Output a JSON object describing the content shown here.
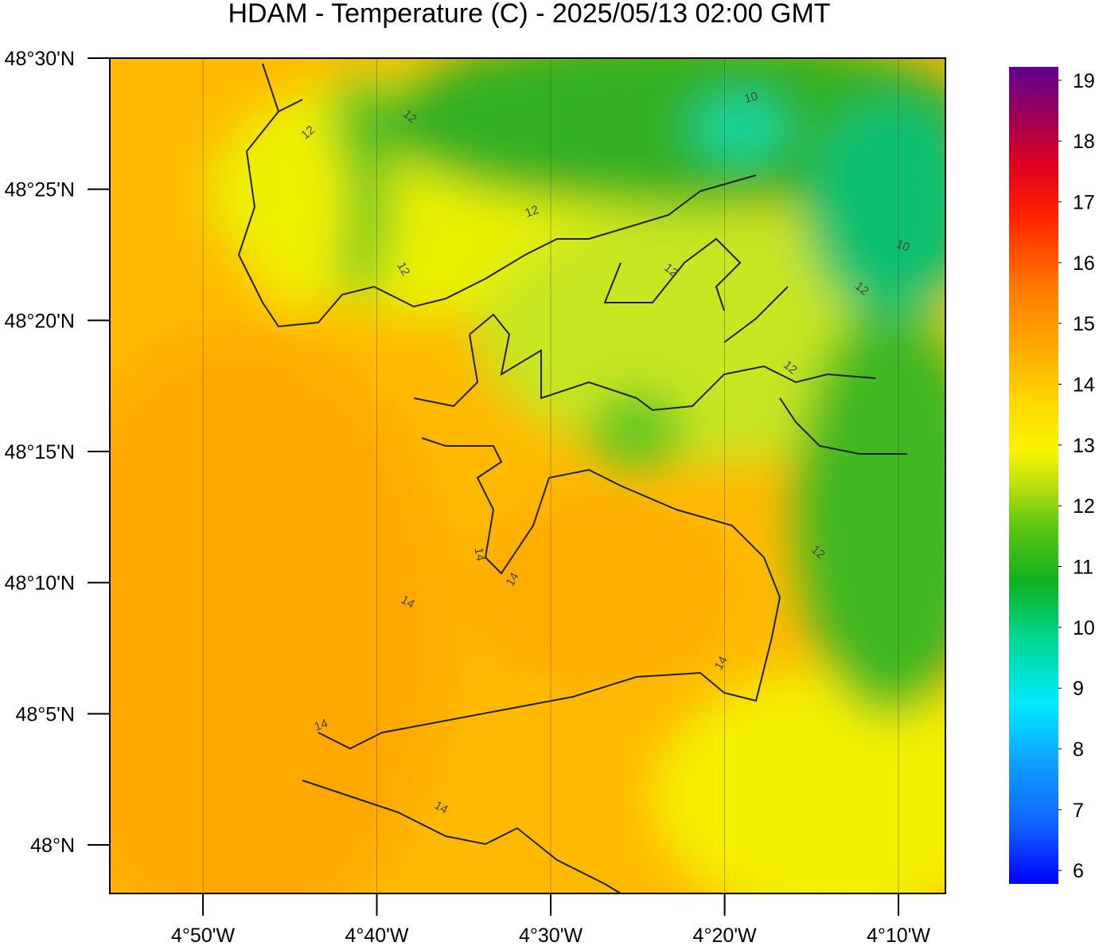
{
  "title": "HDAM - Temperature (C)  -  2025/05/13  02:00 GMT",
  "map": {
    "xlim": [
      -4.9226,
      -4.1217
    ],
    "ylim": [
      47.9691,
      48.5
    ],
    "yticks": [
      {
        "value": 48.5,
        "label": "48°30'N"
      },
      {
        "value": 48.4167,
        "label": "48°25'N"
      },
      {
        "value": 48.3333,
        "label": "48°20'N"
      },
      {
        "value": 48.25,
        "label": "48°15'N"
      },
      {
        "value": 48.1667,
        "label": "48°10'N"
      },
      {
        "value": 48.0833,
        "label": "48°5'N"
      },
      {
        "value": 48,
        "label": "48°N"
      }
    ],
    "xticks": [
      {
        "value": -4.8333,
        "label": "4°50'W"
      },
      {
        "value": -4.6667,
        "label": "4°40'W"
      },
      {
        "value": -4.5,
        "label": "4°30'W"
      },
      {
        "value": -4.3333,
        "label": "4°20'W"
      },
      {
        "value": -4.1667,
        "label": "4°10'W"
      }
    ],
    "contour_labels": [
      "12",
      "12",
      "12",
      "12",
      "12",
      "12",
      "12",
      "12",
      "10",
      "10",
      "14",
      "14",
      "14",
      "14",
      "14",
      "14"
    ]
  },
  "colorbar": {
    "lim": [
      5.78,
      19.22
    ],
    "ticks": [
      6,
      7,
      8,
      9,
      10,
      11,
      12,
      13,
      14,
      15,
      16,
      17,
      18,
      19
    ]
  }
}
